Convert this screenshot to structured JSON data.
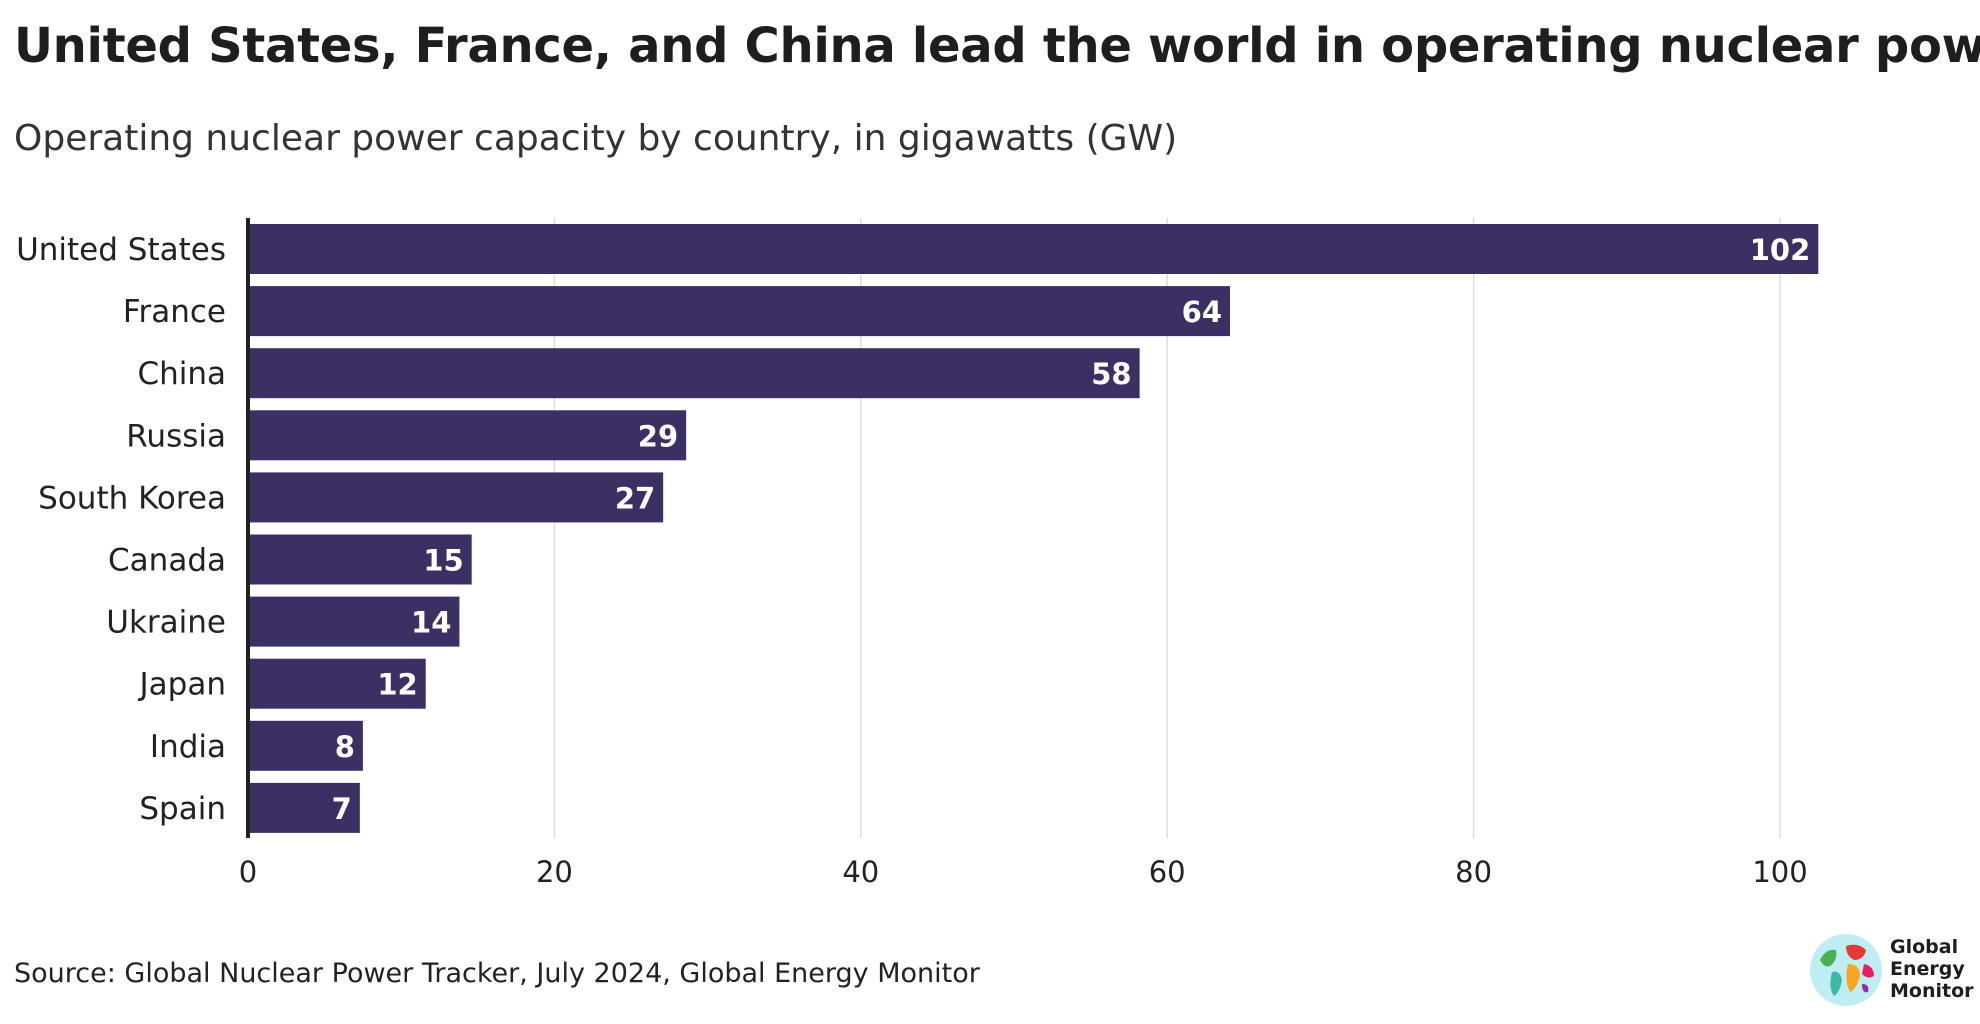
{
  "title": "United States, France, and China lead the world in operating nuclear power",
  "subtitle": "Operating nuclear power capacity by country, in gigawatts (GW)",
  "source": "Source: Global Nuclear Power Tracker, July 2024, Global Energy Monitor",
  "logo": {
    "lines": [
      "Global",
      "Energy",
      "Monitor"
    ],
    "icon": "globe-icon"
  },
  "colors": {
    "bar": "#3b2f63",
    "grid": "#dddddd",
    "axis": "#222222",
    "bar_label": "#ffffff"
  },
  "chart_data": {
    "type": "bar",
    "orientation": "horizontal",
    "categories": [
      "United States",
      "France",
      "China",
      "Russia",
      "South Korea",
      "Canada",
      "Ukraine",
      "Japan",
      "India",
      "Spain"
    ],
    "values": [
      102.5,
      64.1,
      58.2,
      28.6,
      27.1,
      14.6,
      13.8,
      11.6,
      7.5,
      7.3
    ],
    "data_labels": [
      "102",
      "64",
      "58",
      "29",
      "27",
      "15",
      "14",
      "12",
      "8",
      "7"
    ],
    "xlim": [
      0,
      105
    ],
    "xticks": [
      0,
      20,
      40,
      60,
      80,
      100
    ],
    "xtick_labels": [
      "0",
      "20",
      "40",
      "60",
      "80",
      "100"
    ],
    "grid": "vertical"
  }
}
